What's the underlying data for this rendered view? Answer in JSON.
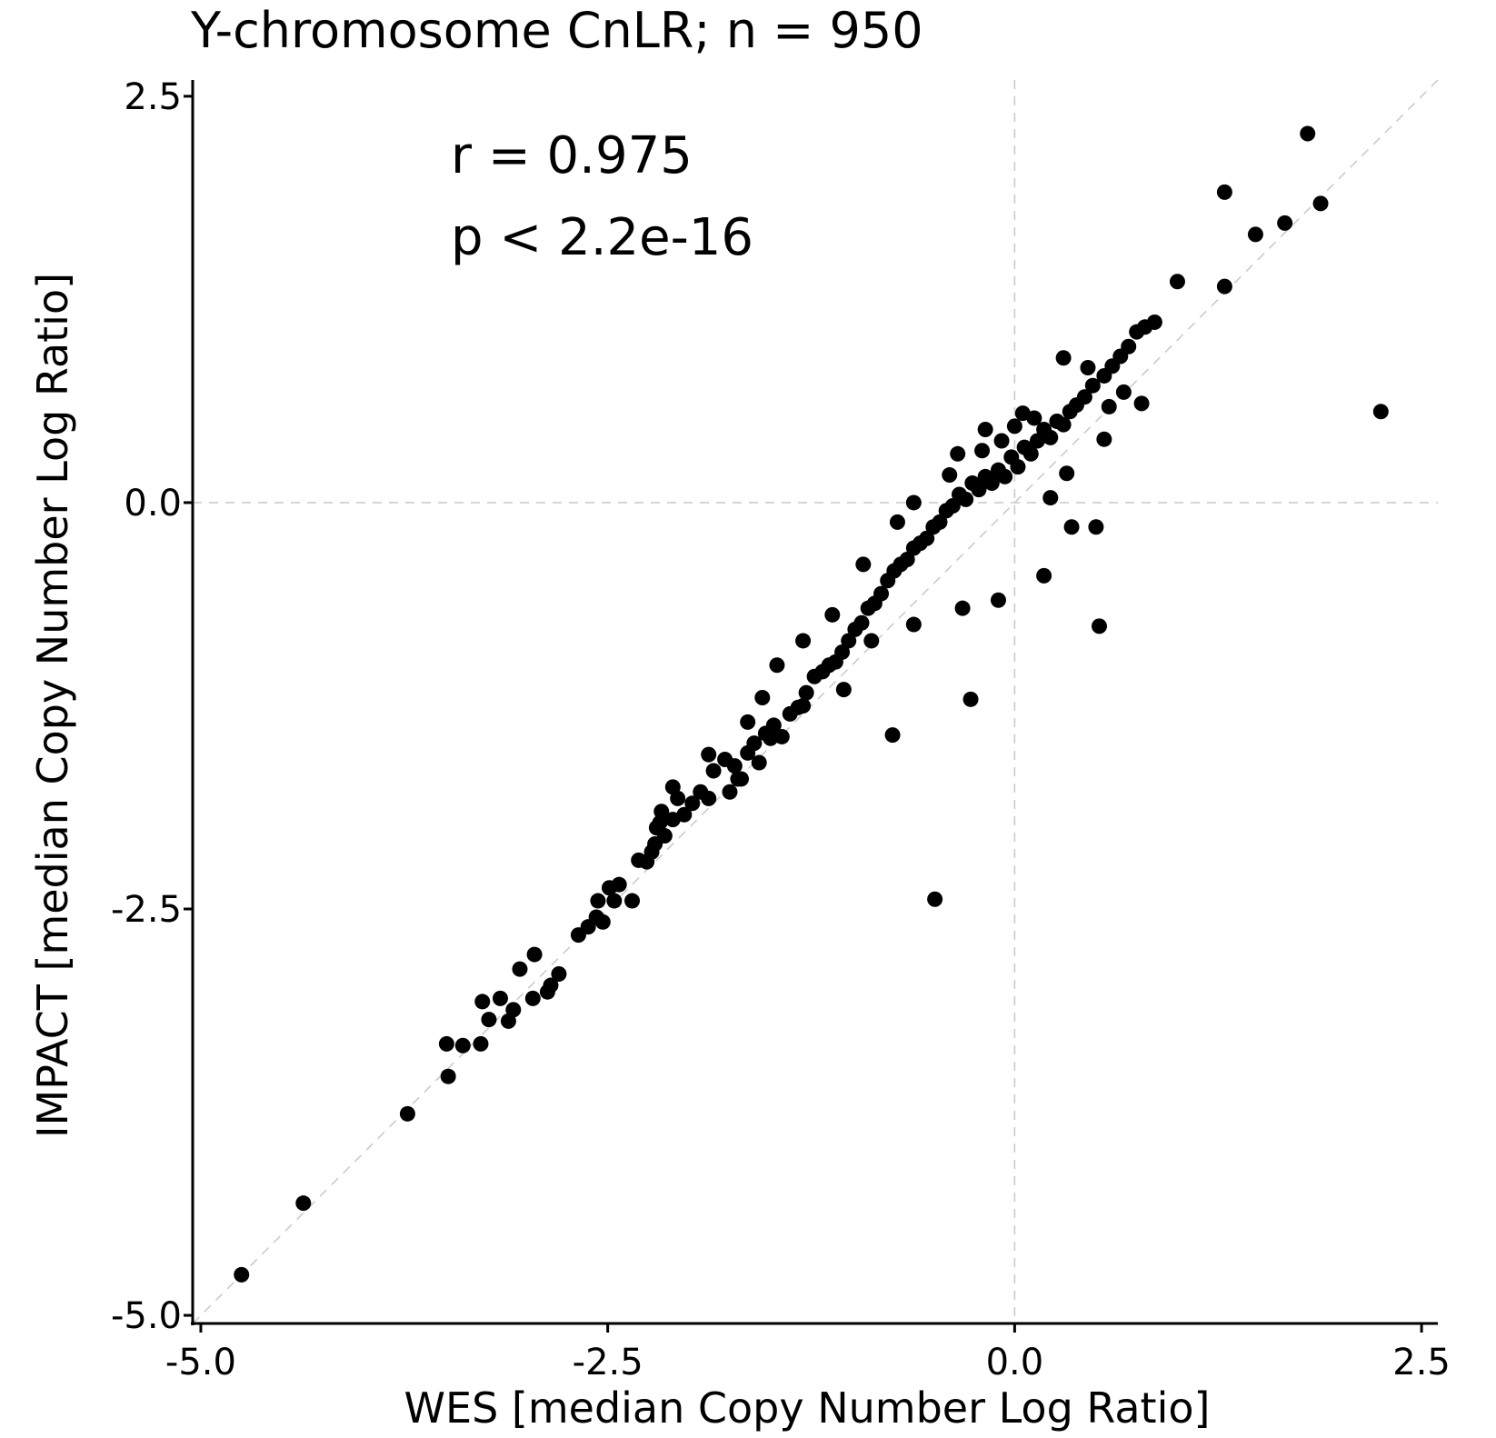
{
  "chart_data": {
    "type": "scatter",
    "title": "Y-chromosome CnLR; n = 950",
    "xlabel": "WES [median Copy Number Log Ratio]",
    "ylabel": "IMPACT [median Copy Number Log Ratio]",
    "xlim": [
      -5.05,
      2.6
    ],
    "ylim": [
      -5.05,
      2.6
    ],
    "xticks": [
      -5.0,
      -2.5,
      0.0,
      2.5
    ],
    "yticks": [
      -5.0,
      -2.5,
      0.0,
      2.5
    ],
    "xtick_labels": [
      "-5.0",
      "-2.5",
      "0.0",
      "2.5"
    ],
    "ytick_labels": [
      "-5.0",
      "-2.5",
      "0.0",
      "2.5"
    ],
    "annotations": [
      "r = 0.975",
      "p < 2.2e-16"
    ],
    "reference_lines": {
      "horizontal_y": 0.0,
      "vertical_x": 0.0,
      "diagonal": "y = x"
    },
    "grid": false,
    "point_color": "#000000",
    "points": [
      [
        -4.75,
        -4.75
      ],
      [
        -4.37,
        -4.31
      ],
      [
        -3.73,
        -3.76
      ],
      [
        -3.48,
        -3.53
      ],
      [
        -3.49,
        -3.33
      ],
      [
        -3.39,
        -3.34
      ],
      [
        -3.28,
        -3.33
      ],
      [
        -3.27,
        -3.07
      ],
      [
        -3.23,
        -3.18
      ],
      [
        -3.16,
        -3.05
      ],
      [
        -3.11,
        -3.19
      ],
      [
        -3.08,
        -3.12
      ],
      [
        -3.04,
        -2.87
      ],
      [
        -2.96,
        -3.05
      ],
      [
        -2.95,
        -2.78
      ],
      [
        -2.87,
        -3.01
      ],
      [
        -2.85,
        -2.97
      ],
      [
        -2.8,
        -2.9
      ],
      [
        -2.68,
        -2.66
      ],
      [
        -2.62,
        -2.61
      ],
      [
        -2.57,
        -2.55
      ],
      [
        -2.56,
        -2.45
      ],
      [
        -2.53,
        -2.58
      ],
      [
        -2.49,
        -2.37
      ],
      [
        -2.46,
        -2.45
      ],
      [
        -2.43,
        -2.35
      ],
      [
        -2.35,
        -2.45
      ],
      [
        -2.31,
        -2.2
      ],
      [
        -2.26,
        -2.21
      ],
      [
        -2.23,
        -2.15
      ],
      [
        -2.21,
        -2.1
      ],
      [
        -2.2,
        -2.0
      ],
      [
        -2.18,
        -1.97
      ],
      [
        -2.17,
        -1.9
      ],
      [
        -2.15,
        -2.05
      ],
      [
        -2.1,
        -1.95
      ],
      [
        -2.07,
        -1.82
      ],
      [
        -2.03,
        -1.92
      ],
      [
        -1.98,
        -1.85
      ],
      [
        -1.93,
        -1.78
      ],
      [
        -1.88,
        -1.82
      ],
      [
        -1.85,
        -1.65
      ],
      [
        -1.78,
        -1.58
      ],
      [
        -1.75,
        -1.78
      ],
      [
        -1.72,
        -1.62
      ],
      [
        -1.68,
        -1.7
      ],
      [
        -1.64,
        -1.54
      ],
      [
        -1.6,
        -1.48
      ],
      [
        -1.57,
        -1.6
      ],
      [
        -1.53,
        -1.42
      ],
      [
        -1.48,
        -1.37
      ],
      [
        -1.43,
        -1.44
      ],
      [
        -1.38,
        -1.3
      ],
      [
        -1.33,
        -1.26
      ],
      [
        -1.28,
        -1.17
      ],
      [
        -1.23,
        -1.07
      ],
      [
        -1.18,
        -1.04
      ],
      [
        -1.14,
        -1.0
      ],
      [
        -1.1,
        -0.98
      ],
      [
        -1.06,
        -0.92
      ],
      [
        -1.02,
        -0.85
      ],
      [
        -0.98,
        -0.78
      ],
      [
        -0.94,
        -0.74
      ],
      [
        -0.9,
        -0.65
      ],
      [
        -0.86,
        -0.62
      ],
      [
        -0.82,
        -0.56
      ],
      [
        -0.78,
        -0.48
      ],
      [
        -0.74,
        -0.42
      ],
      [
        -0.7,
        -0.38
      ],
      [
        -0.66,
        -0.35
      ],
      [
        -0.62,
        -0.28
      ],
      [
        -0.58,
        -0.25
      ],
      [
        -0.54,
        -0.22
      ],
      [
        -0.5,
        -0.15
      ],
      [
        -0.46,
        -0.12
      ],
      [
        -0.42,
        -0.05
      ],
      [
        -0.38,
        -0.02
      ],
      [
        -0.34,
        0.05
      ],
      [
        -0.3,
        0.02
      ],
      [
        -0.26,
        0.12
      ],
      [
        -0.22,
        0.08
      ],
      [
        -0.18,
        0.16
      ],
      [
        -0.14,
        0.12
      ],
      [
        -0.1,
        0.2
      ],
      [
        -0.06,
        0.16
      ],
      [
        -0.02,
        0.28
      ],
      [
        0.02,
        0.22
      ],
      [
        0.06,
        0.34
      ],
      [
        0.1,
        0.3
      ],
      [
        0.14,
        0.38
      ],
      [
        0.18,
        0.45
      ],
      [
        0.22,
        0.4
      ],
      [
        0.26,
        0.5
      ],
      [
        0.3,
        0.48
      ],
      [
        0.34,
        0.56
      ],
      [
        0.38,
        0.6
      ],
      [
        0.43,
        0.65
      ],
      [
        0.48,
        0.72
      ],
      [
        0.55,
        0.78
      ],
      [
        0.6,
        0.84
      ],
      [
        0.65,
        0.9
      ],
      [
        0.7,
        0.96
      ],
      [
        0.75,
        1.05
      ],
      [
        0.8,
        1.08
      ],
      [
        0.86,
        1.11
      ],
      [
        0.3,
        0.89
      ],
      [
        0.45,
        0.83
      ],
      [
        0.67,
        0.68
      ],
      [
        0.78,
        0.61
      ],
      [
        0.58,
        0.59
      ],
      [
        0.55,
        0.39
      ],
      [
        0.32,
        0.18
      ],
      [
        0.22,
        0.03
      ],
      [
        0.35,
        -0.15
      ],
      [
        0.5,
        -0.15
      ],
      [
        0.18,
        -0.45
      ],
      [
        -0.1,
        -0.6
      ],
      [
        -0.32,
        -0.65
      ],
      [
        -0.62,
        -0.75
      ],
      [
        -0.88,
        -0.85
      ],
      [
        -1.05,
        -1.15
      ],
      [
        -1.3,
        -1.25
      ],
      [
        -1.5,
        -1.45
      ],
      [
        -1.7,
        -1.7
      ],
      [
        -0.62,
        0.0
      ],
      [
        -0.72,
        -0.12
      ],
      [
        -0.93,
        -0.38
      ],
      [
        -1.12,
        -0.69
      ],
      [
        -1.3,
        -0.85
      ],
      [
        -1.46,
        -1.0
      ],
      [
        -1.55,
        -1.2
      ],
      [
        -1.64,
        -1.35
      ],
      [
        -1.88,
        -1.55
      ],
      [
        -2.1,
        -1.75
      ],
      [
        -0.4,
        0.17
      ],
      [
        -0.35,
        0.3
      ],
      [
        -0.18,
        0.45
      ],
      [
        -0.08,
        0.38
      ],
      [
        0.05,
        0.55
      ],
      [
        0.12,
        0.52
      ],
      [
        0.0,
        0.47
      ],
      [
        -0.2,
        0.32
      ],
      [
        0.52,
        -0.76
      ],
      [
        -0.27,
        -1.21
      ],
      [
        -0.75,
        -1.43
      ],
      [
        -0.49,
        -2.44
      ],
      [
        1.0,
        1.36
      ],
      [
        1.29,
        1.33
      ],
      [
        1.29,
        1.91
      ],
      [
        1.48,
        1.65
      ],
      [
        1.66,
        1.72
      ],
      [
        1.8,
        2.27
      ],
      [
        1.88,
        1.84
      ],
      [
        2.25,
        0.56
      ]
    ]
  }
}
